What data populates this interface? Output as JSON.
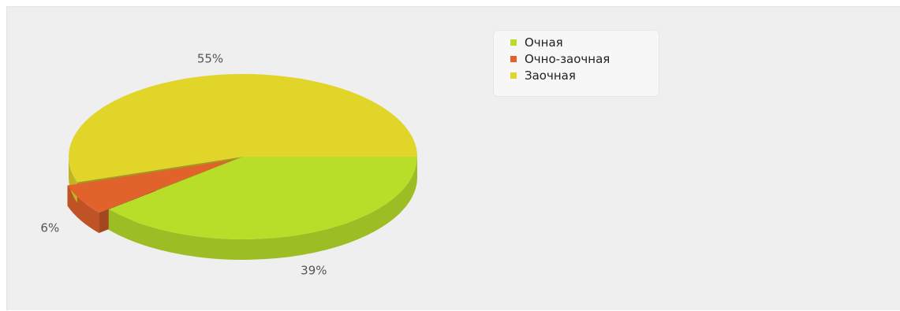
{
  "chart_data": {
    "type": "pie",
    "style": "3d",
    "legend_placement": "top-center",
    "slices": [
      {
        "name": "Очная",
        "value": 39,
        "label": "39%",
        "color": "#b9de2a"
      },
      {
        "name": "Очно-заочная",
        "value": 6,
        "label": "6%",
        "color": "#e2622b"
      },
      {
        "name": "Заочная",
        "value": 55,
        "label": "55%",
        "color": "#e1d52a"
      }
    ]
  },
  "legend": {
    "items": [
      {
        "label": "Очная",
        "color": "#b9de2a"
      },
      {
        "label": "Очно-заочная",
        "color": "#e2622b"
      },
      {
        "label": "Заочная",
        "color": "#e1d52a"
      }
    ]
  }
}
